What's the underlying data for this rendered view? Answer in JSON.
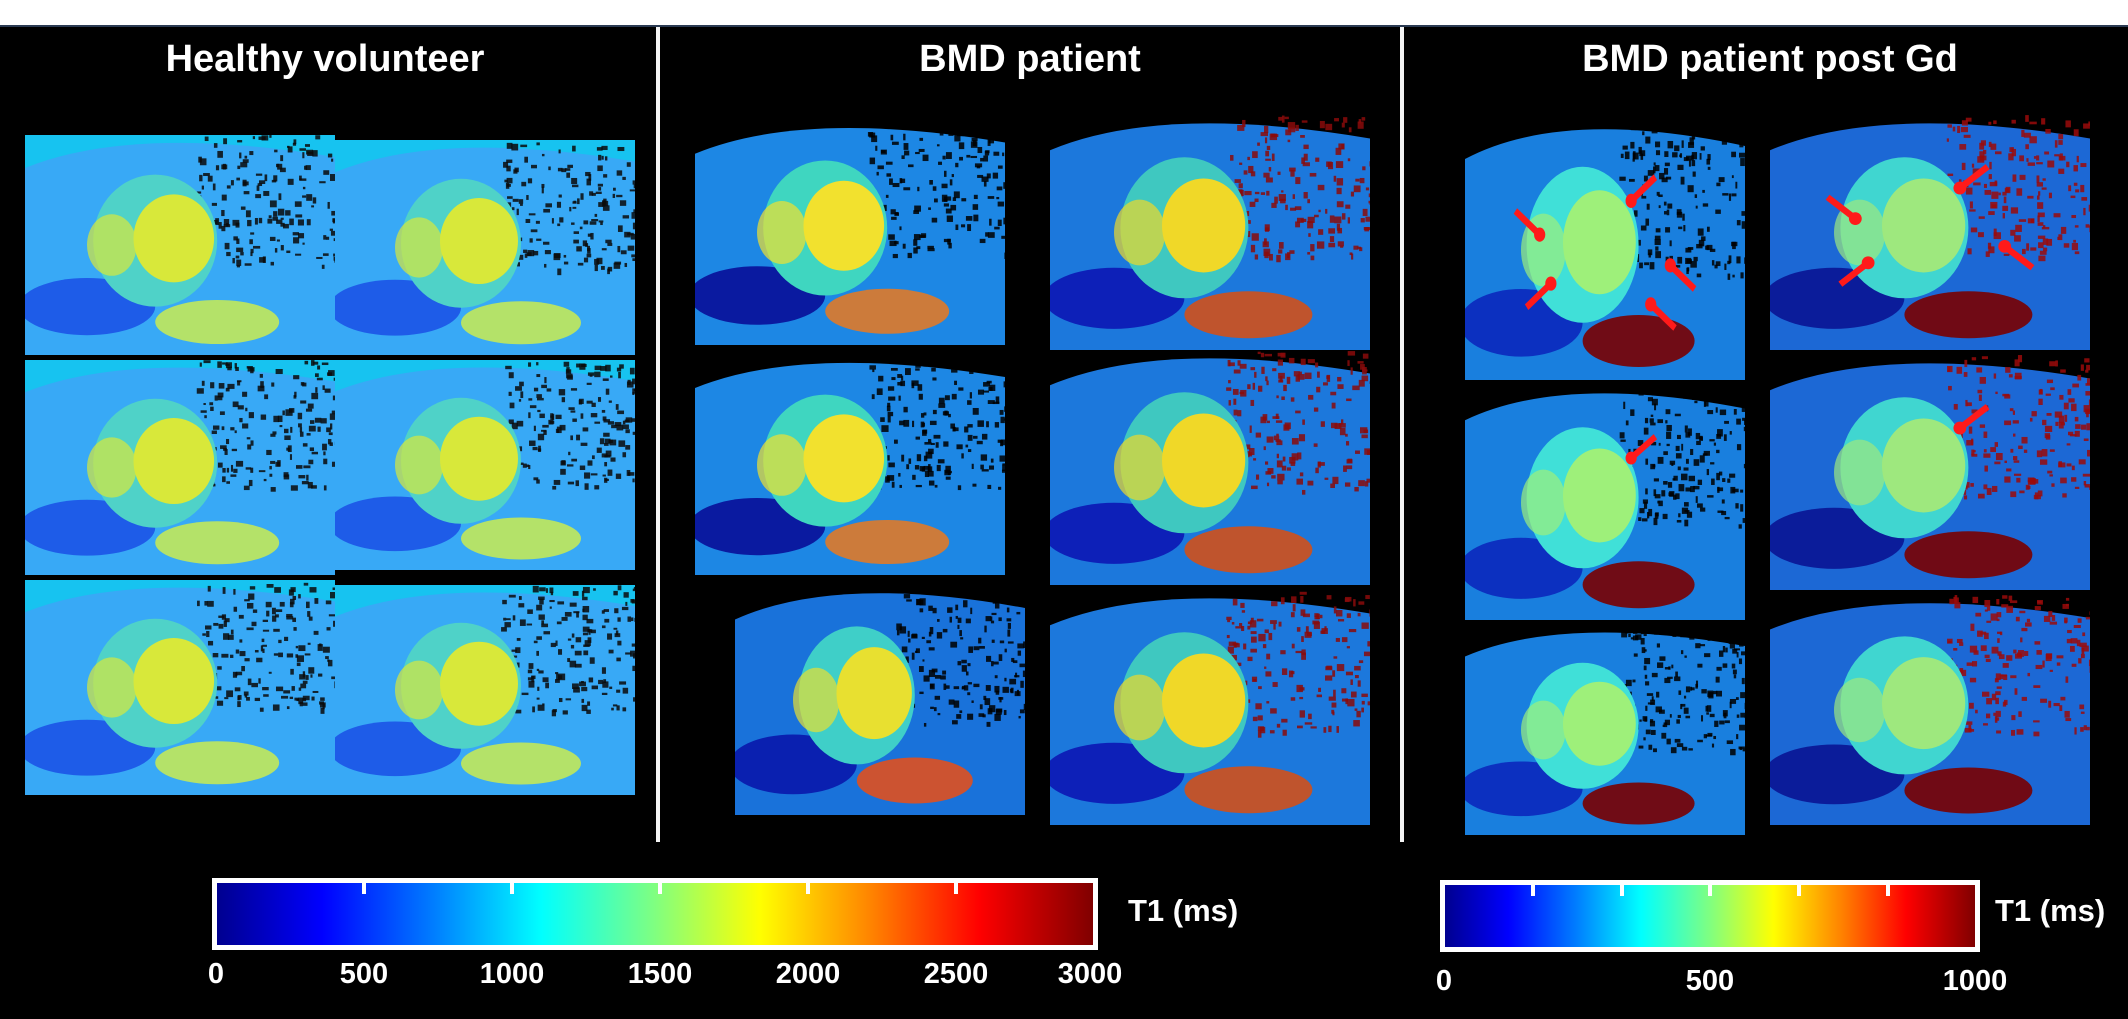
{
  "panels": [
    {
      "title": "Healthy volunteer"
    },
    {
      "title": "BMD patient"
    },
    {
      "title": "BMD patient post Gd"
    }
  ],
  "colorbars": [
    {
      "label": "T1 (ms)",
      "ticks": [
        "0",
        "500",
        "1000",
        "1500",
        "2000",
        "2500",
        "3000"
      ]
    },
    {
      "label": "T1 (ms)",
      "ticks": [
        "0",
        "500",
        "1000"
      ]
    }
  ],
  "colors": {
    "background": "#000000",
    "jet_low": "#00008f",
    "jet_mid": "#00ffff",
    "jet_high": "#800000",
    "arrow": "#ff1a1a"
  }
}
